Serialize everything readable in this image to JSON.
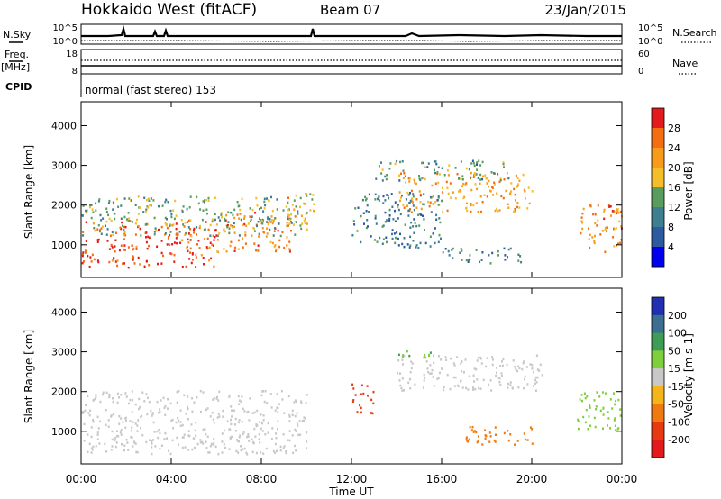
{
  "header": {
    "station": "Hokkaido West (fitACF)",
    "beam": "Beam 07",
    "date": "23/Jan/2015"
  },
  "top_panels": {
    "nsky_label": "N.Sky",
    "nsearch_label": "N.Search",
    "noise_ticks": [
      "10^5",
      "10^0"
    ],
    "freq_label_1": "Freq.",
    "freq_label_2": "[MHz]",
    "freq_ticks": [
      "18",
      "8"
    ],
    "nave_label": "Nave",
    "nave_ticks": [
      "60",
      "0"
    ],
    "cpid_label": "CPID",
    "cpid_text": "normal (fast stereo) 153"
  },
  "x_axis": {
    "label": "Time UT",
    "ticks": [
      "00:00",
      "04:00",
      "08:00",
      "12:00",
      "16:00",
      "20:00",
      "00:00"
    ]
  },
  "chart_data": [
    {
      "type": "heatmap",
      "quantity": "Power",
      "xlabel": "Time UT",
      "ylabel": "Slant Range [km]",
      "x_range_hours": [
        0,
        24
      ],
      "ylim": [
        180,
        4600
      ],
      "y_ticks": [
        "1000",
        "2000",
        "3000",
        "4000"
      ],
      "colorbar": {
        "label": "Power [dB]",
        "ticks": [
          "28",
          "24",
          "20",
          "16",
          "12",
          "8",
          "4"
        ],
        "colors": [
          "#e41a1c",
          "#f46d10",
          "#f89b1a",
          "#f4bd2a",
          "#5a9c5e",
          "#3c7f8f",
          "#2c5aa0",
          "#0000ee"
        ]
      },
      "echo_regions": [
        {
          "t_start": 0.0,
          "t_end": 6.0,
          "r_low": 400,
          "r_high": 1600,
          "power_db": 26
        },
        {
          "t_start": 6.0,
          "t_end": 9.5,
          "r_low": 800,
          "r_high": 1800,
          "power_db": 22
        },
        {
          "t_start": 0.0,
          "t_end": 10.0,
          "r_low": 1200,
          "r_high": 2200,
          "power_db": 12
        },
        {
          "t_start": 9.0,
          "t_end": 10.3,
          "r_low": 1500,
          "r_high": 2300,
          "power_db": 18
        },
        {
          "t_start": 14.0,
          "t_end": 20.0,
          "r_low": 1800,
          "r_high": 2800,
          "power_db": 20
        },
        {
          "t_start": 13.0,
          "t_end": 19.0,
          "r_low": 2600,
          "r_high": 3100,
          "power_db": 10
        },
        {
          "t_start": 16.0,
          "t_end": 19.5,
          "r_low": 500,
          "r_high": 900,
          "power_db": 8
        },
        {
          "t_start": 22.0,
          "t_end": 24.0,
          "r_low": 800,
          "r_high": 2000,
          "power_db": 22
        },
        {
          "t_start": 12.0,
          "t_end": 16.0,
          "r_low": 900,
          "r_high": 2300,
          "power_db": 8
        }
      ]
    },
    {
      "type": "heatmap",
      "quantity": "Velocity",
      "xlabel": "Time UT",
      "ylabel": "Slant Range [km]",
      "x_range_hours": [
        0,
        24
      ],
      "ylim": [
        180,
        4600
      ],
      "y_ticks": [
        "1000",
        "2000",
        "3000",
        "4000"
      ],
      "colorbar": {
        "label": "Velocity [m s-1]",
        "ticks": [
          "200",
          "100",
          "50",
          "15",
          "-15",
          "-50",
          "-100",
          "-200"
        ],
        "colors": [
          "#2030b0",
          "#3c6f8f",
          "#3d9c55",
          "#7fcf3c",
          "#c8c8c8",
          "#f4b51a",
          "#f07a10",
          "#e83a10",
          "#e41a1c"
        ]
      },
      "echo_regions": [
        {
          "t_start": 0.0,
          "t_end": 10.0,
          "r_low": 400,
          "r_high": 2000,
          "velocity": 0
        },
        {
          "t_start": 14.0,
          "t_end": 20.5,
          "r_low": 2000,
          "r_high": 2900,
          "velocity": 0
        },
        {
          "t_start": 12.0,
          "t_end": 13.0,
          "r_low": 1400,
          "r_high": 2200,
          "velocity": -150
        },
        {
          "t_start": 17.0,
          "t_end": 20.0,
          "r_low": 600,
          "r_high": 1100,
          "velocity": -80
        },
        {
          "t_start": 22.0,
          "t_end": 24.0,
          "r_low": 1000,
          "r_high": 2000,
          "velocity": 30
        },
        {
          "t_start": 14.0,
          "t_end": 16.0,
          "r_low": 2800,
          "r_high": 3000,
          "velocity": 40
        }
      ]
    }
  ]
}
